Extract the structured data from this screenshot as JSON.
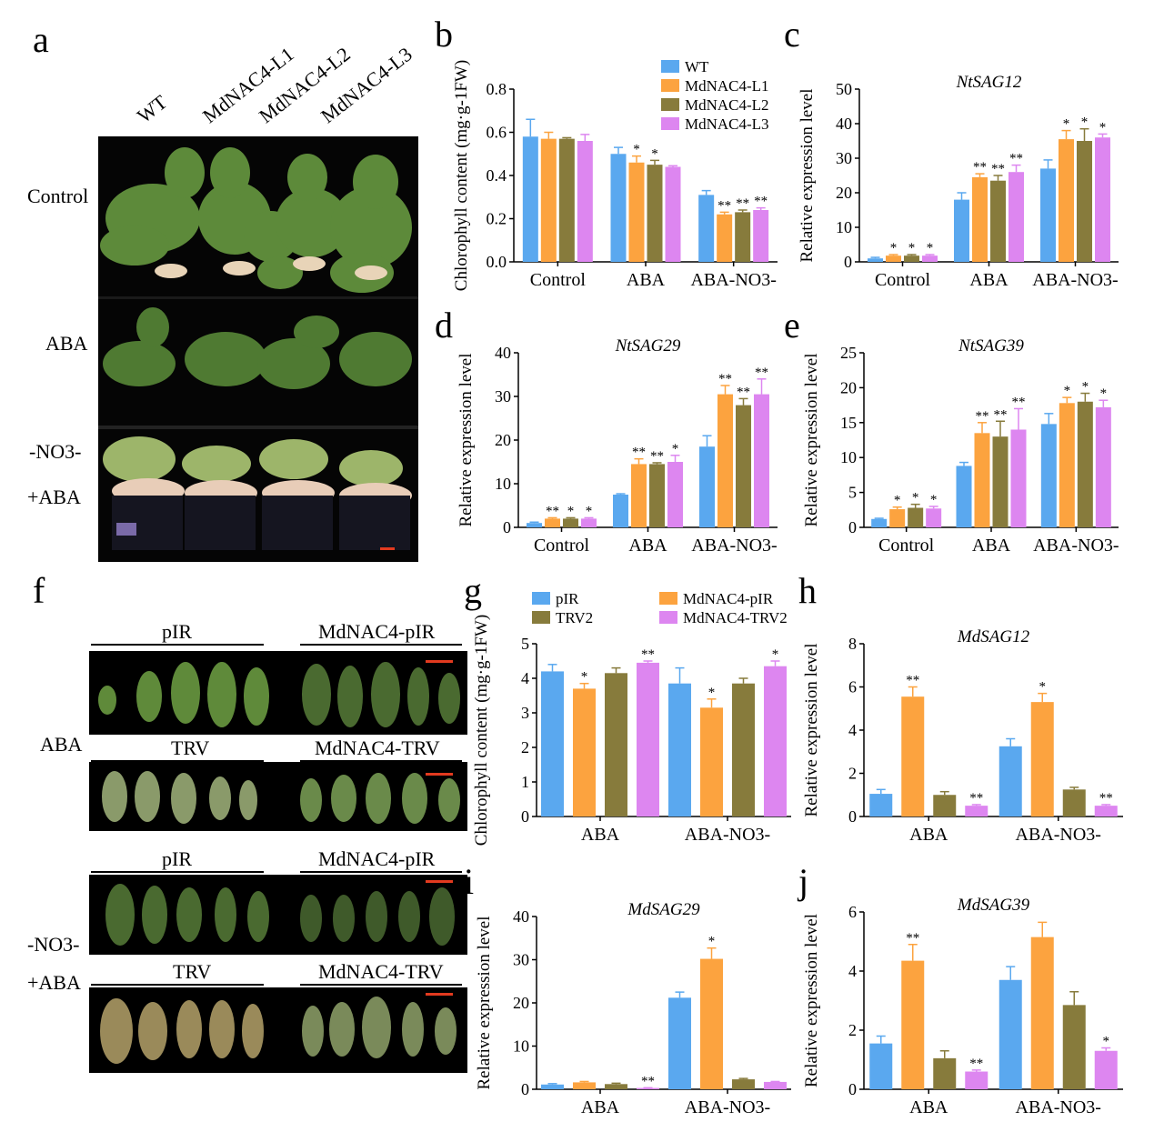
{
  "panels": {
    "a": "a",
    "b": "b",
    "c": "c",
    "d": "d",
    "e": "e",
    "f": "f",
    "g": "g",
    "h": "h",
    "i": "i",
    "j": "j"
  },
  "panel_a": {
    "columns": [
      "WT",
      "MdNAC4-L1",
      "MdNAC4-L2",
      "MdNAC4-L3"
    ],
    "rows": [
      "Control",
      "ABA",
      "-NO3-",
      "+ABA"
    ]
  },
  "panel_f": {
    "groups": [
      {
        "side": "ABA",
        "left": "pIR",
        "right": "MdNAC4-pIR",
        "left2": "TRV",
        "right2": "MdNAC4-TRV"
      },
      {
        "side": "-NO3-",
        "side2": "+ABA",
        "left": "pIR",
        "right": "MdNAC4-pIR",
        "left2": "TRV",
        "right2": "MdNAC4-TRV"
      }
    ]
  },
  "colors": {
    "blue": "#5aa8ef",
    "orange": "#fca33f",
    "olive": "#877b3c",
    "violet": "#dd86f0"
  },
  "chart_data": [
    {
      "id": "b",
      "type": "bar",
      "title": "",
      "ylabel": "Chlorophyll  content (mg·g-1FW)",
      "categories": [
        "Control",
        "ABA",
        "ABA-NO3-"
      ],
      "ylim": [
        0,
        0.8
      ],
      "yticks": [
        0.0,
        0.2,
        0.4,
        0.6,
        0.8
      ],
      "tickfmt": 1,
      "legend": [
        "WT",
        "MdNAC4-L1",
        "MdNAC4-L2",
        "MdNAC4-L3"
      ],
      "series": [
        {
          "name": "WT",
          "values": [
            0.58,
            0.5,
            0.31
          ],
          "err": [
            0.08,
            0.03,
            0.02
          ],
          "sig": [
            "",
            "",
            ""
          ]
        },
        {
          "name": "MdNAC4-L1",
          "values": [
            0.57,
            0.46,
            0.22
          ],
          "err": [
            0.03,
            0.03,
            0.01
          ],
          "sig": [
            "",
            "*",
            "**"
          ]
        },
        {
          "name": "MdNAC4-L2",
          "values": [
            0.57,
            0.45,
            0.23
          ],
          "err": [
            0.005,
            0.02,
            0.01
          ],
          "sig": [
            "",
            "*",
            "**"
          ]
        },
        {
          "name": "MdNAC4-L3",
          "values": [
            0.56,
            0.44,
            0.24
          ],
          "err": [
            0.03,
            0.005,
            0.01
          ],
          "sig": [
            "",
            "",
            "**"
          ]
        }
      ]
    },
    {
      "id": "c",
      "type": "bar",
      "title": "NtSAG12",
      "ylabel": "Relative expression level",
      "categories": [
        "Control",
        "ABA",
        "ABA-NO3-"
      ],
      "ylim": [
        0,
        50
      ],
      "yticks": [
        0,
        10,
        20,
        30,
        40,
        50
      ],
      "tickfmt": 0,
      "series": [
        {
          "values": [
            1,
            18,
            27
          ],
          "err": [
            0.3,
            2,
            2.5
          ],
          "sig": [
            "",
            "",
            ""
          ]
        },
        {
          "values": [
            1.8,
            24.5,
            35.5
          ],
          "err": [
            0.3,
            1,
            2.5
          ],
          "sig": [
            "*",
            "**",
            "*"
          ]
        },
        {
          "values": [
            1.8,
            23.5,
            35
          ],
          "err": [
            0.3,
            1.5,
            3.5
          ],
          "sig": [
            "*",
            "**",
            "*"
          ]
        },
        {
          "values": [
            1.8,
            26,
            36
          ],
          "err": [
            0.3,
            2,
            1
          ],
          "sig": [
            "*",
            "**",
            "*"
          ]
        }
      ]
    },
    {
      "id": "d",
      "type": "bar",
      "title": "NtSAG29",
      "ylabel": "Relative expression level",
      "categories": [
        "Control",
        "ABA",
        "ABA-NO3-"
      ],
      "ylim": [
        0,
        40
      ],
      "yticks": [
        0,
        10,
        20,
        30,
        40
      ],
      "tickfmt": 0,
      "series": [
        {
          "values": [
            1,
            7.5,
            18.5
          ],
          "err": [
            0.2,
            0.2,
            2.5
          ],
          "sig": [
            "",
            "",
            ""
          ]
        },
        {
          "values": [
            2,
            14.5,
            30.5
          ],
          "err": [
            0.2,
            1.2,
            2
          ],
          "sig": [
            "**",
            "**",
            "**"
          ]
        },
        {
          "values": [
            2,
            14.5,
            28
          ],
          "err": [
            0.2,
            0.3,
            1.5
          ],
          "sig": [
            "*",
            "**",
            "**"
          ]
        },
        {
          "values": [
            2,
            15,
            30.5
          ],
          "err": [
            0.2,
            1.5,
            3.5
          ],
          "sig": [
            "*",
            "*",
            "**"
          ]
        }
      ]
    },
    {
      "id": "e",
      "type": "bar",
      "title": "NtSAG39",
      "ylabel": "Relative expression level",
      "categories": [
        "Control",
        "ABA",
        "ABA-NO3-"
      ],
      "ylim": [
        0,
        25
      ],
      "yticks": [
        0,
        5,
        10,
        15,
        20,
        25
      ],
      "tickfmt": 0,
      "series": [
        {
          "values": [
            1.2,
            8.8,
            14.8
          ],
          "err": [
            0.1,
            0.5,
            1.5
          ],
          "sig": [
            "",
            "",
            ""
          ]
        },
        {
          "values": [
            2.6,
            13.5,
            17.8
          ],
          "err": [
            0.3,
            1.5,
            0.8
          ],
          "sig": [
            "*",
            "**",
            "*"
          ]
        },
        {
          "values": [
            2.8,
            13,
            18
          ],
          "err": [
            0.5,
            2.2,
            1.2
          ],
          "sig": [
            "*",
            "**",
            "*"
          ]
        },
        {
          "values": [
            2.7,
            14,
            17.2
          ],
          "err": [
            0.3,
            3,
            1
          ],
          "sig": [
            "*",
            "**",
            "*"
          ]
        }
      ]
    },
    {
      "id": "g",
      "type": "bar",
      "title": "",
      "ylabel": "Chlorophyll  content (mg·g-1FW)",
      "categories": [
        "ABA",
        "ABA-NO3-"
      ],
      "ylim": [
        0,
        5
      ],
      "yticks": [
        0,
        1,
        2,
        3,
        4,
        5
      ],
      "tickfmt": 0,
      "legend": [
        "pIR",
        "MdNAC4-pIR",
        "TRV2",
        "MdNAC4-TRV2"
      ],
      "series": [
        {
          "name": "pIR",
          "values": [
            4.2,
            3.85
          ],
          "err": [
            0.2,
            0.45
          ],
          "sig": [
            "",
            ""
          ]
        },
        {
          "name": "MdNAC4-pIR",
          "values": [
            3.7,
            3.15
          ],
          "err": [
            0.15,
            0.25
          ],
          "sig": [
            "*",
            "*"
          ]
        },
        {
          "name": "TRV2",
          "values": [
            4.15,
            3.85
          ],
          "err": [
            0.15,
            0.15
          ],
          "sig": [
            "",
            ""
          ]
        },
        {
          "name": "MdNAC4-TRV2",
          "values": [
            4.45,
            4.35
          ],
          "err": [
            0.05,
            0.15
          ],
          "sig": [
            "**",
            "*"
          ]
        }
      ]
    },
    {
      "id": "h",
      "type": "bar",
      "title": "MdSAG12",
      "ylabel": "Relative expression level",
      "categories": [
        "ABA",
        "ABA-NO3-"
      ],
      "ylim": [
        0,
        8
      ],
      "yticks": [
        0,
        2,
        4,
        6,
        8
      ],
      "tickfmt": 0,
      "series": [
        {
          "values": [
            1.05,
            3.25
          ],
          "err": [
            0.2,
            0.35
          ],
          "sig": [
            "",
            ""
          ]
        },
        {
          "values": [
            5.55,
            5.3
          ],
          "err": [
            0.45,
            0.4
          ],
          "sig": [
            "**",
            "*"
          ]
        },
        {
          "values": [
            1.0,
            1.25
          ],
          "err": [
            0.15,
            0.1
          ],
          "sig": [
            "",
            ""
          ]
        },
        {
          "values": [
            0.5,
            0.5
          ],
          "err": [
            0.05,
            0.05
          ],
          "sig": [
            "**",
            "**"
          ]
        }
      ]
    },
    {
      "id": "i",
      "type": "bar",
      "title": "MdSAG29",
      "ylabel": "Relative expression level",
      "categories": [
        "ABA",
        "ABA-NO3-"
      ],
      "ylim": [
        0,
        40
      ],
      "yticks": [
        0,
        10,
        20,
        30,
        40
      ],
      "tickfmt": 0,
      "series": [
        {
          "values": [
            1.1,
            21.2
          ],
          "err": [
            0.2,
            1.3
          ],
          "sig": [
            "",
            ""
          ]
        },
        {
          "values": [
            1.6,
            30.2
          ],
          "err": [
            0.2,
            2.5
          ],
          "sig": [
            "",
            "*"
          ]
        },
        {
          "values": [
            1.2,
            2.3
          ],
          "err": [
            0.2,
            0.2
          ],
          "sig": [
            "",
            ""
          ]
        },
        {
          "values": [
            0.3,
            1.7
          ],
          "err": [
            0.05,
            0.1
          ],
          "sig": [
            "**",
            ""
          ]
        }
      ]
    },
    {
      "id": "j",
      "type": "bar",
      "title": "MdSAG39",
      "ylabel": "Relative expression level",
      "categories": [
        "ABA",
        "ABA-NO3-"
      ],
      "ylim": [
        0,
        6
      ],
      "yticks": [
        0,
        2,
        4,
        6
      ],
      "tickfmt": 0,
      "series": [
        {
          "values": [
            1.55,
            3.7
          ],
          "err": [
            0.25,
            0.45
          ],
          "sig": [
            "",
            ""
          ]
        },
        {
          "values": [
            4.35,
            5.15
          ],
          "err": [
            0.55,
            0.5
          ],
          "sig": [
            "**",
            ""
          ]
        },
        {
          "values": [
            1.05,
            2.85
          ],
          "err": [
            0.25,
            0.45
          ],
          "sig": [
            "",
            ""
          ]
        },
        {
          "values": [
            0.6,
            1.3
          ],
          "err": [
            0.05,
            0.1
          ],
          "sig": [
            "**",
            "*"
          ]
        }
      ]
    }
  ]
}
